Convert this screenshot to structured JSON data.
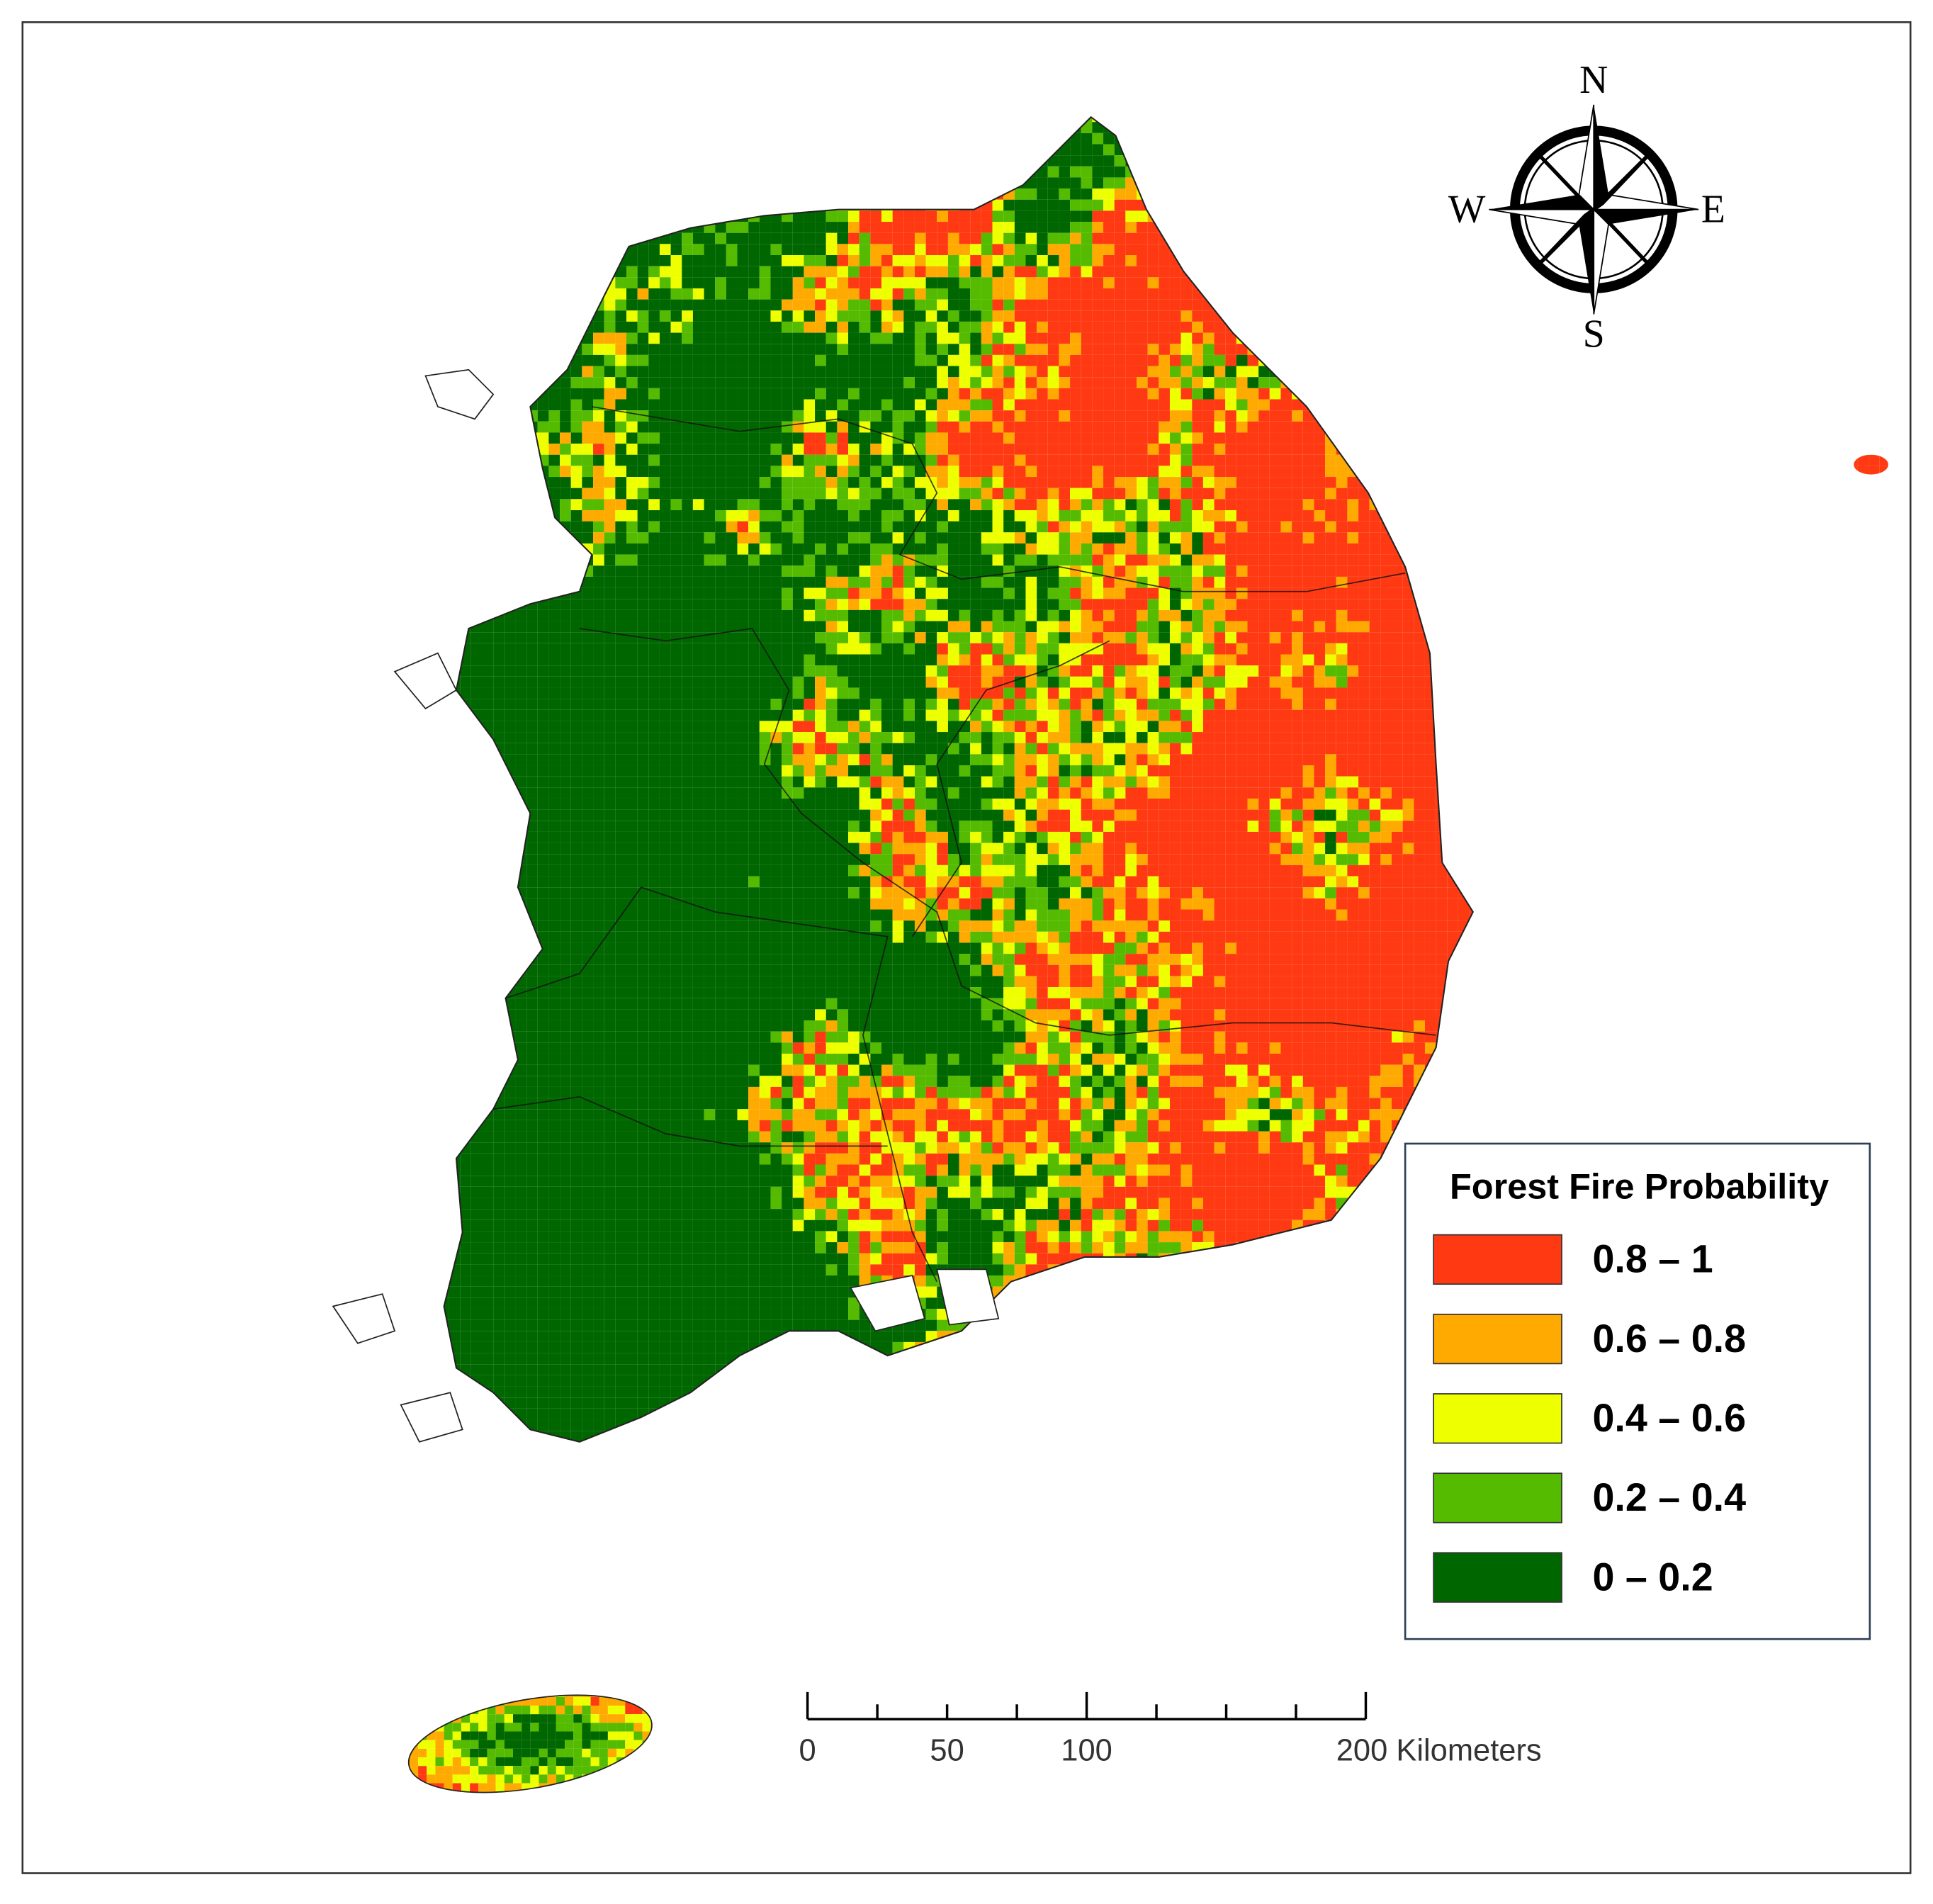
{
  "compass": {
    "north": "N",
    "south": "S",
    "east": "E",
    "west": "W"
  },
  "legend": {
    "title": "Forest Fire Probability",
    "items": [
      {
        "label": "0.8 – 1",
        "color": "#ff3a12"
      },
      {
        "label": "0.6 – 0.8",
        "color": "#ffaa00"
      },
      {
        "label": "0.4 – 0.6",
        "color": "#eeff00"
      },
      {
        "label": "0.2 – 0.4",
        "color": "#55bb00"
      },
      {
        "label": "0 – 0.2",
        "color": "#006600"
      }
    ]
  },
  "scale_bar": {
    "max": 200,
    "ticks": [
      0,
      25,
      50,
      75,
      100,
      125,
      150,
      175,
      200
    ],
    "labels": [
      {
        "value": 0,
        "label": "0"
      },
      {
        "value": 50,
        "label": "50"
      },
      {
        "value": 100,
        "label": "100"
      },
      {
        "value": 200,
        "label": "200 Kilometers"
      }
    ]
  }
}
